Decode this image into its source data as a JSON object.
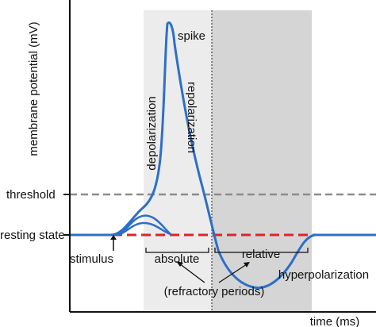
{
  "diagram": {
    "y_axis_label": "membrane potential (mV)",
    "x_axis_label": "time (ms)",
    "labels": {
      "threshold": "threshold",
      "resting_state": "resting state",
      "stimulus": "stimulus",
      "spike": "spike",
      "depolarization": "depolarization",
      "repolarization": "repolarization",
      "absolute": "absolute",
      "relative": "relative",
      "refractory_periods": "(refractory periods)",
      "hyperpolarization": "hyperpolarization"
    },
    "colors": {
      "trace": "#2d6fc8",
      "resting_line": "#d9262b",
      "threshold_line": "#8c8c8c",
      "absolute_region": "#ececec",
      "relative_region": "#d6d5d5",
      "axis": "#111111"
    }
  }
}
